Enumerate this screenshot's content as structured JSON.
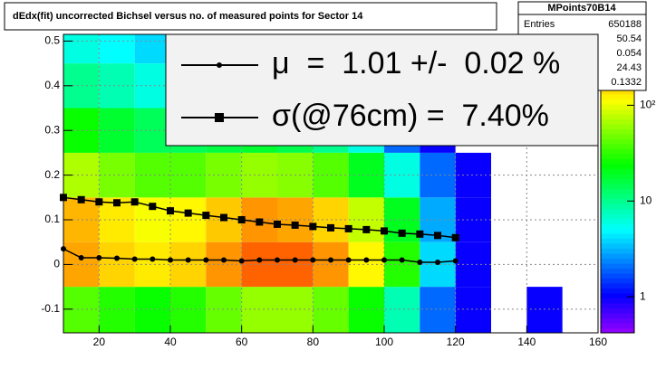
{
  "chart_data": {
    "type": "heatmap",
    "title": "dEdx(fit) uncorrected Bichsel versus no. of measured points for Sector 14",
    "xlim": [
      10,
      160
    ],
    "ylim": [
      -0.153,
      0.515
    ],
    "xticks": [
      20,
      40,
      60,
      80,
      100,
      120,
      140,
      160
    ],
    "yticks": [
      -0.1,
      0,
      0.1,
      0.2,
      0.3,
      0.4,
      0.5
    ],
    "grid": true,
    "xbins": [
      10,
      20,
      30,
      40,
      50,
      60,
      70,
      80,
      90,
      100,
      110,
      120,
      130,
      140,
      150,
      160
    ],
    "ybins": [
      -0.153,
      -0.05,
      0.05,
      0.15,
      0.25,
      0.35,
      0.45,
      0.515
    ],
    "z": [
      [
        40,
        30,
        25,
        30,
        45,
        60,
        60,
        45,
        25,
        8,
        2,
        1,
        0,
        1,
        0
      ],
      [
        200,
        150,
        130,
        150,
        220,
        300,
        300,
        220,
        120,
        30,
        4,
        1,
        0,
        0,
        0
      ],
      [
        180,
        130,
        110,
        120,
        160,
        220,
        200,
        150,
        80,
        20,
        3,
        1,
        0,
        0,
        0
      ],
      [
        70,
        50,
        40,
        40,
        50,
        60,
        55,
        40,
        20,
        6,
        2,
        1,
        0,
        0,
        0
      ],
      [
        25,
        18,
        14,
        14,
        16,
        18,
        15,
        10,
        6,
        2,
        1,
        0,
        0,
        0,
        0
      ],
      [
        10,
        8,
        6,
        6,
        6,
        6,
        5,
        4,
        2,
        1,
        1,
        0,
        0,
        0,
        0
      ],
      [
        6,
        5,
        4,
        4,
        4,
        4,
        3,
        2,
        1,
        1,
        0,
        0,
        0,
        0,
        0
      ]
    ],
    "zlog": true,
    "zlim": [
      0.42,
      550
    ],
    "zticks": [
      1,
      10,
      {
        "value": 100,
        "label": "10²"
      }
    ],
    "x": [
      10,
      15,
      20,
      25,
      30,
      35,
      40,
      45,
      50,
      55,
      60,
      65,
      70,
      75,
      80,
      85,
      90,
      95,
      100,
      105,
      110,
      115,
      120
    ],
    "series": [
      {
        "name": "μ  =  1.01 +/-  0.02 %",
        "color": "#000000",
        "marker": "circle",
        "values": [
          0.035,
          0.015,
          0.015,
          0.014,
          0.012,
          0.012,
          0.01,
          0.01,
          0.01,
          0.01,
          0.008,
          0.01,
          0.01,
          0.01,
          0.01,
          0.01,
          0.01,
          0.01,
          0.01,
          0.01,
          0.005,
          0.005,
          0.008
        ]
      },
      {
        "name": "σ(@76cm) =  7.40%",
        "color": "#000000",
        "marker": "square",
        "values": [
          0.15,
          0.145,
          0.14,
          0.138,
          0.14,
          0.13,
          0.12,
          0.115,
          0.11,
          0.105,
          0.1,
          0.095,
          0.09,
          0.088,
          0.085,
          0.082,
          0.08,
          0.078,
          0.075,
          0.07,
          0.068,
          0.065,
          0.06
        ]
      }
    ],
    "stats": {
      "title": "MPoints70B14",
      "entries_label": "Entries",
      "entries": 650188,
      "values": [
        50.54,
        0.054,
        24.43,
        0.1332
      ]
    }
  }
}
